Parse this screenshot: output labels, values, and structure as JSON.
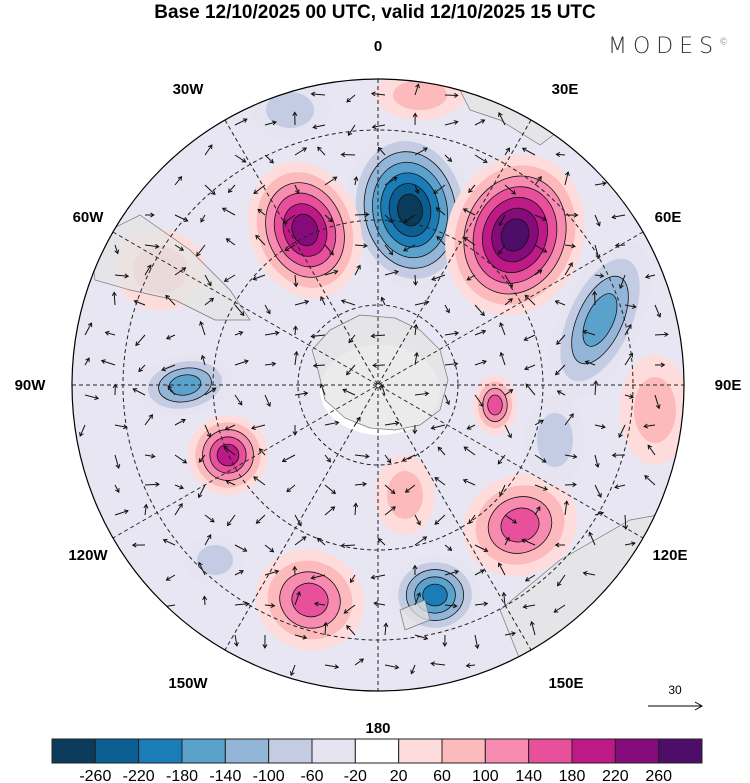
{
  "title": "Base 12/10/2025 00 UTC, valid 12/10/2025 15 UTC",
  "logo": "MODES",
  "logo_mark": "©",
  "longitude_labels": {
    "n": "0",
    "nne": "30E",
    "ene": "60E",
    "e": "90E",
    "ese": "120E",
    "sse": "150E",
    "s": "180",
    "ssw": "150W",
    "wsw": "120W",
    "w": "90W",
    "wnw": "60W",
    "nnw": "30W"
  },
  "vector_reference": "30",
  "colorbar": {
    "ticks": [
      "-260",
      "-220",
      "-180",
      "-140",
      "-100",
      "-60",
      "-20",
      "20",
      "60",
      "100",
      "140",
      "180",
      "220",
      "260"
    ],
    "colors": [
      "#0b3b5a",
      "#0b5e92",
      "#1b7db8",
      "#5aa2cb",
      "#93b6d8",
      "#c3cce2",
      "#e6e4f1",
      "#ffffff",
      "#fddcdb",
      "#fdbabd",
      "#f88cb0",
      "#e8509c",
      "#be1a87",
      "#860b7a",
      "#4d0d68"
    ]
  }
}
